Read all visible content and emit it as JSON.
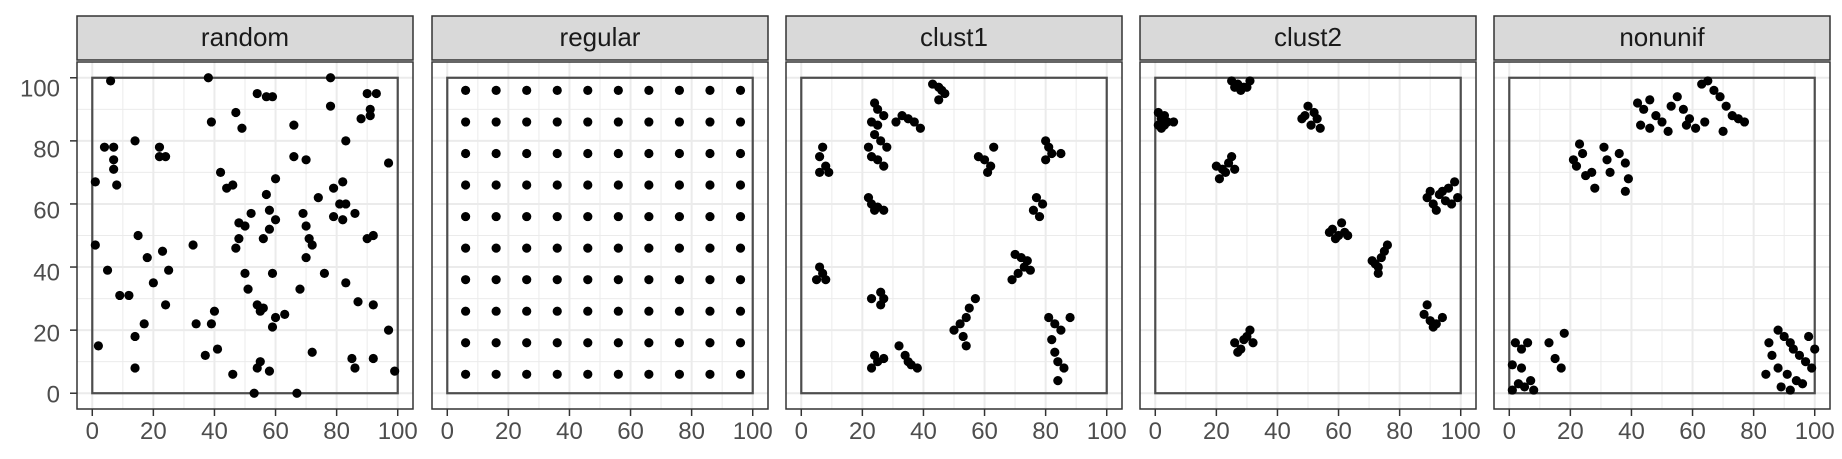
{
  "colors": {
    "strip_bg": "#d9d9d9",
    "panel_border": "#333333",
    "grid": "#ebebeb",
    "window": "#4d4d4d",
    "point": "#000000",
    "tick_text": "#4d4d4d",
    "strip_text": "#1a1a1a"
  },
  "chart_data": [
    {
      "type": "scatter",
      "panel": "random",
      "xlim": [
        -5,
        105
      ],
      "ylim": [
        -5,
        105
      ],
      "xticks": [
        "0",
        "20",
        "40",
        "60",
        "80",
        "100"
      ],
      "yticks": [
        "0",
        "20",
        "40",
        "60",
        "80",
        "100"
      ],
      "grid": true,
      "window": [
        0,
        100,
        0,
        100
      ],
      "points": [
        [
          6,
          99
        ],
        [
          38,
          100
        ],
        [
          78,
          100
        ],
        [
          54,
          95
        ],
        [
          57,
          94
        ],
        [
          59,
          94
        ],
        [
          90,
          95
        ],
        [
          93,
          95
        ],
        [
          4,
          78
        ],
        [
          7,
          78
        ],
        [
          7,
          74
        ],
        [
          14,
          80
        ],
        [
          22,
          78
        ],
        [
          22,
          75
        ],
        [
          24,
          75
        ],
        [
          7,
          71
        ],
        [
          8,
          66
        ],
        [
          47,
          89
        ],
        [
          49,
          84
        ],
        [
          39,
          86
        ],
        [
          1,
          67
        ],
        [
          42,
          70
        ],
        [
          46,
          66
        ],
        [
          44,
          65
        ],
        [
          66,
          85
        ],
        [
          78,
          91
        ],
        [
          83,
          80
        ],
        [
          88,
          87
        ],
        [
          91,
          88
        ],
        [
          91,
          90
        ],
        [
          97,
          73
        ],
        [
          66,
          75
        ],
        [
          70,
          74
        ],
        [
          74,
          62
        ],
        [
          79,
          65
        ],
        [
          82,
          67
        ],
        [
          81,
          60
        ],
        [
          83,
          60
        ],
        [
          79,
          56
        ],
        [
          86,
          57
        ],
        [
          82,
          55
        ],
        [
          60,
          68
        ],
        [
          57,
          63
        ],
        [
          58,
          58
        ],
        [
          60,
          55
        ],
        [
          58,
          52
        ],
        [
          56,
          49
        ],
        [
          48,
          54
        ],
        [
          50,
          53
        ],
        [
          52,
          57
        ],
        [
          48,
          49
        ],
        [
          47,
          46
        ],
        [
          50,
          38
        ],
        [
          51,
          33
        ],
        [
          59,
          38
        ],
        [
          69,
          57
        ],
        [
          70,
          53
        ],
        [
          71,
          49
        ],
        [
          70,
          43
        ],
        [
          72,
          47
        ],
        [
          76,
          38
        ],
        [
          68,
          33
        ],
        [
          63,
          25
        ],
        [
          60,
          24
        ],
        [
          59,
          21
        ],
        [
          54,
          28
        ],
        [
          56,
          27
        ],
        [
          55,
          26
        ],
        [
          1,
          47
        ],
        [
          5,
          39
        ],
        [
          9,
          31
        ],
        [
          12,
          31
        ],
        [
          18,
          43
        ],
        [
          15,
          50
        ],
        [
          17,
          22
        ],
        [
          20,
          35
        ],
        [
          23,
          45
        ],
        [
          25,
          39
        ],
        [
          24,
          28
        ],
        [
          14,
          18
        ],
        [
          14,
          8
        ],
        [
          2,
          15
        ],
        [
          34,
          22
        ],
        [
          37,
          12
        ],
        [
          39,
          22
        ],
        [
          40,
          26
        ],
        [
          41,
          14
        ],
        [
          46,
          6
        ],
        [
          53,
          0
        ],
        [
          54,
          8
        ],
        [
          55,
          10
        ],
        [
          58,
          7
        ],
        [
          67,
          0
        ],
        [
          72,
          13
        ],
        [
          83,
          35
        ],
        [
          87,
          29
        ],
        [
          92,
          50
        ],
        [
          90,
          49
        ],
        [
          92,
          28
        ],
        [
          85,
          11
        ],
        [
          86,
          8
        ],
        [
          92,
          11
        ],
        [
          97,
          20
        ],
        [
          99,
          7
        ],
        [
          33,
          47
        ]
      ]
    },
    {
      "type": "scatter",
      "panel": "regular",
      "xlim": [
        -5,
        105
      ],
      "ylim": [
        -5,
        105
      ],
      "xticks": [
        "0",
        "20",
        "40",
        "60",
        "80",
        "100"
      ],
      "yticks": [
        "0",
        "20",
        "40",
        "60",
        "80",
        "100"
      ],
      "grid": true,
      "window": [
        0,
        100,
        0,
        100
      ],
      "grid_points": {
        "x": [
          6,
          16,
          26,
          36,
          46,
          56,
          66,
          76,
          86,
          96
        ],
        "y": [
          6,
          16,
          26,
          36,
          46,
          56,
          66,
          76,
          86,
          96
        ]
      }
    },
    {
      "type": "scatter",
      "panel": "clust1",
      "xlim": [
        -5,
        105
      ],
      "ylim": [
        -5,
        105
      ],
      "xticks": [
        "0",
        "20",
        "40",
        "60",
        "80",
        "100"
      ],
      "yticks": [
        "0",
        "20",
        "40",
        "60",
        "80",
        "100"
      ],
      "grid": true,
      "window": [
        0,
        100,
        0,
        100
      ],
      "points": [
        [
          43,
          98
        ],
        [
          45,
          97
        ],
        [
          46,
          96
        ],
        [
          47,
          95
        ],
        [
          45,
          93
        ],
        [
          24,
          92
        ],
        [
          25,
          90
        ],
        [
          27,
          88
        ],
        [
          23,
          86
        ],
        [
          25,
          85
        ],
        [
          33,
          88
        ],
        [
          35,
          87
        ],
        [
          37,
          86
        ],
        [
          39,
          84
        ],
        [
          31,
          86
        ],
        [
          24,
          82
        ],
        [
          26,
          80
        ],
        [
          28,
          78
        ],
        [
          22,
          78
        ],
        [
          23,
          75
        ],
        [
          25,
          74
        ],
        [
          27,
          72
        ],
        [
          7,
          78
        ],
        [
          6,
          75
        ],
        [
          8,
          72
        ],
        [
          6,
          70
        ],
        [
          9,
          70
        ],
        [
          58,
          75
        ],
        [
          60,
          74
        ],
        [
          62,
          72
        ],
        [
          63,
          78
        ],
        [
          61,
          70
        ],
        [
          80,
          80
        ],
        [
          81,
          78
        ],
        [
          82,
          76
        ],
        [
          85,
          76
        ],
        [
          80,
          74
        ],
        [
          77,
          62
        ],
        [
          79,
          60
        ],
        [
          76,
          58
        ],
        [
          78,
          56
        ],
        [
          22,
          62
        ],
        [
          23,
          60
        ],
        [
          25,
          59
        ],
        [
          24,
          58
        ],
        [
          27,
          58
        ],
        [
          70,
          44
        ],
        [
          72,
          43
        ],
        [
          74,
          42
        ],
        [
          73,
          40
        ],
        [
          71,
          38
        ],
        [
          69,
          36
        ],
        [
          75,
          39
        ],
        [
          6,
          40
        ],
        [
          7,
          38
        ],
        [
          5,
          36
        ],
        [
          8,
          36
        ],
        [
          23,
          30
        ],
        [
          26,
          32
        ],
        [
          27,
          30
        ],
        [
          26,
          28
        ],
        [
          24,
          12
        ],
        [
          25,
          10
        ],
        [
          27,
          11
        ],
        [
          23,
          8
        ],
        [
          32,
          15
        ],
        [
          34,
          12
        ],
        [
          36,
          9
        ],
        [
          38,
          8
        ],
        [
          35,
          10
        ],
        [
          50,
          20
        ],
        [
          52,
          22
        ],
        [
          54,
          24
        ],
        [
          55,
          27
        ],
        [
          57,
          30
        ],
        [
          53,
          18
        ],
        [
          54,
          15
        ],
        [
          81,
          24
        ],
        [
          83,
          22
        ],
        [
          85,
          20
        ],
        [
          88,
          24
        ],
        [
          82,
          17
        ],
        [
          83,
          13
        ],
        [
          84,
          10
        ],
        [
          86,
          8
        ],
        [
          84,
          4
        ]
      ]
    },
    {
      "type": "scatter",
      "panel": "clust2",
      "xlim": [
        -5,
        105
      ],
      "ylim": [
        -5,
        105
      ],
      "xticks": [
        "0",
        "20",
        "40",
        "60",
        "80",
        "100"
      ],
      "yticks": [
        "0",
        "20",
        "40",
        "60",
        "80",
        "100"
      ],
      "grid": true,
      "window": [
        0,
        100,
        0,
        100
      ],
      "points": [
        [
          1,
          89
        ],
        [
          2,
          87
        ],
        [
          3,
          88
        ],
        [
          4,
          86
        ],
        [
          1,
          85
        ],
        [
          6,
          86
        ],
        [
          3,
          85
        ],
        [
          2,
          84
        ],
        [
          25,
          99
        ],
        [
          27,
          98
        ],
        [
          29,
          97
        ],
        [
          31,
          99
        ],
        [
          28,
          96
        ],
        [
          30,
          97
        ],
        [
          26,
          97
        ],
        [
          50,
          91
        ],
        [
          52,
          89
        ],
        [
          49,
          88
        ],
        [
          53,
          87
        ],
        [
          51,
          85
        ],
        [
          54,
          84
        ],
        [
          48,
          87
        ],
        [
          20,
          72
        ],
        [
          22,
          71
        ],
        [
          24,
          73
        ],
        [
          25,
          75
        ],
        [
          21,
          68
        ],
        [
          23,
          70
        ],
        [
          26,
          71
        ],
        [
          58,
          52
        ],
        [
          60,
          50
        ],
        [
          62,
          51
        ],
        [
          61,
          54
        ],
        [
          59,
          49
        ],
        [
          63,
          50
        ],
        [
          57,
          51
        ],
        [
          72,
          41
        ],
        [
          73,
          40
        ],
        [
          74,
          43
        ],
        [
          75,
          45
        ],
        [
          76,
          47
        ],
        [
          71,
          42
        ],
        [
          73,
          38
        ],
        [
          89,
          62
        ],
        [
          91,
          60
        ],
        [
          93,
          63
        ],
        [
          95,
          61
        ],
        [
          96,
          65
        ],
        [
          98,
          67
        ],
        [
          92,
          58
        ],
        [
          97,
          60
        ],
        [
          94,
          64
        ],
        [
          90,
          64
        ],
        [
          99,
          62
        ],
        [
          88,
          25
        ],
        [
          90,
          23
        ],
        [
          92,
          22
        ],
        [
          94,
          24
        ],
        [
          89,
          28
        ],
        [
          91,
          21
        ],
        [
          26,
          16
        ],
        [
          28,
          14
        ],
        [
          30,
          18
        ],
        [
          31,
          20
        ],
        [
          27,
          13
        ],
        [
          29,
          17
        ],
        [
          32,
          16
        ]
      ]
    },
    {
      "type": "scatter",
      "panel": "nonunif",
      "xlim": [
        -5,
        105
      ],
      "ylim": [
        -5,
        105
      ],
      "xticks": [
        "0",
        "20",
        "40",
        "60",
        "80",
        "100"
      ],
      "yticks": [
        "0",
        "20",
        "40",
        "60",
        "80",
        "100"
      ],
      "grid": true,
      "window": [
        0,
        100,
        0,
        100
      ],
      "points": [
        [
          42,
          92
        ],
        [
          44,
          90
        ],
        [
          46,
          93
        ],
        [
          48,
          88
        ],
        [
          50,
          86
        ],
        [
          53,
          91
        ],
        [
          55,
          94
        ],
        [
          57,
          90
        ],
        [
          59,
          87
        ],
        [
          61,
          84
        ],
        [
          63,
          98
        ],
        [
          65,
          99
        ],
        [
          67,
          96
        ],
        [
          69,
          94
        ],
        [
          71,
          91
        ],
        [
          73,
          88
        ],
        [
          75,
          87
        ],
        [
          77,
          86
        ],
        [
          46,
          84
        ],
        [
          52,
          83
        ],
        [
          58,
          85
        ],
        [
          64,
          86
        ],
        [
          70,
          83
        ],
        [
          43,
          85
        ],
        [
          23,
          79
        ],
        [
          24,
          76
        ],
        [
          22,
          72
        ],
        [
          25,
          69
        ],
        [
          27,
          70
        ],
        [
          31,
          78
        ],
        [
          32,
          74
        ],
        [
          33,
          70
        ],
        [
          36,
          76
        ],
        [
          38,
          73
        ],
        [
          39,
          68
        ],
        [
          38,
          64
        ],
        [
          28,
          65
        ],
        [
          21,
          74
        ],
        [
          2,
          16
        ],
        [
          4,
          14
        ],
        [
          6,
          16
        ],
        [
          1,
          9
        ],
        [
          3,
          3
        ],
        [
          5,
          2
        ],
        [
          7,
          4
        ],
        [
          8,
          1
        ],
        [
          13,
          16
        ],
        [
          15,
          11
        ],
        [
          18,
          19
        ],
        [
          17,
          8
        ],
        [
          4,
          8
        ],
        [
          1,
          1
        ],
        [
          88,
          20
        ],
        [
          90,
          18
        ],
        [
          92,
          16
        ],
        [
          93,
          14
        ],
        [
          95,
          12
        ],
        [
          97,
          10
        ],
        [
          99,
          8
        ],
        [
          86,
          12
        ],
        [
          88,
          8
        ],
        [
          91,
          6
        ],
        [
          94,
          4
        ],
        [
          96,
          3
        ],
        [
          89,
          2
        ],
        [
          92,
          1
        ],
        [
          84,
          6
        ],
        [
          100,
          14
        ],
        [
          98,
          18
        ],
        [
          85,
          16
        ]
      ]
    }
  ],
  "panels": [
    {
      "strip_label": "random"
    },
    {
      "strip_label": "regular"
    },
    {
      "strip_label": "clust1"
    },
    {
      "strip_label": "clust2"
    },
    {
      "strip_label": "nonunif"
    }
  ],
  "axes": {
    "x_tick_labels": [
      "0",
      "20",
      "40",
      "60",
      "80",
      "100"
    ],
    "y_tick_labels": [
      "0",
      "20",
      "40",
      "60",
      "80",
      "100"
    ]
  }
}
